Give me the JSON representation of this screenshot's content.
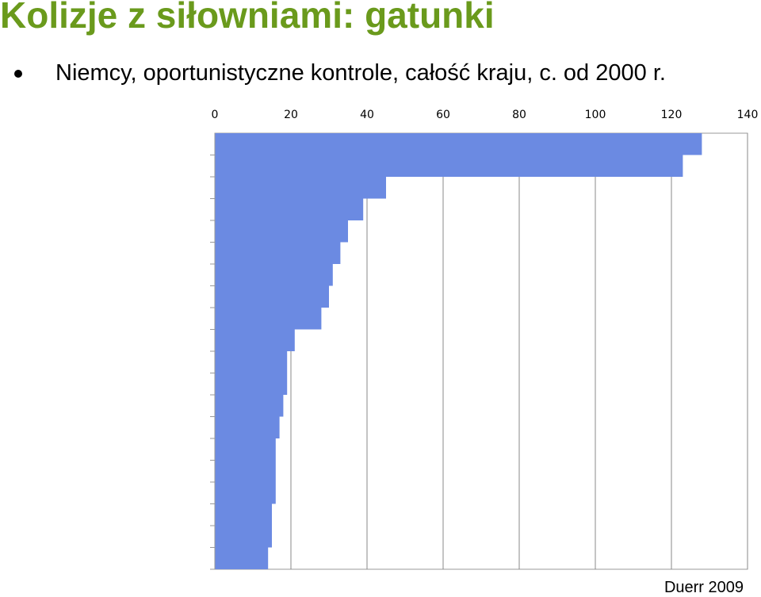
{
  "title": "Kolizje z siłowniami: gatunki",
  "bullet": "Niemcy, oportunistyczne kontrole, całość kraju, c. od 2000 r.",
  "source": "Duerr 2009",
  "chart_data": {
    "type": "bar",
    "orientation": "horizontal",
    "categories": [
      null,
      null,
      null,
      null,
      null,
      null,
      null,
      null,
      null,
      null,
      null,
      null,
      null,
      null,
      null,
      null,
      null,
      null,
      null,
      null
    ],
    "values": [
      128,
      123,
      45,
      39,
      35,
      33,
      31,
      30,
      28,
      21,
      19,
      19,
      18,
      17,
      16,
      16,
      16,
      15,
      15,
      14
    ],
    "color": "#6b8ae2",
    "xlim": [
      0,
      140
    ],
    "xticks": [
      0,
      20,
      40,
      60,
      80,
      100,
      120,
      140
    ],
    "grid": true
  }
}
